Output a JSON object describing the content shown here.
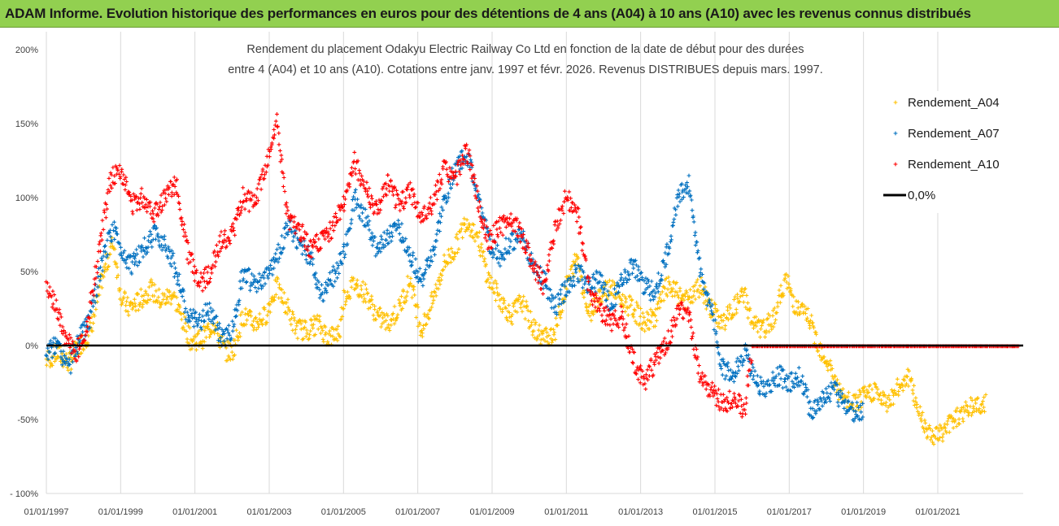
{
  "header": {
    "title": "ADAM Informe. Evolution historique des performances en euros pour des détentions de 4 ans (A04) à 10 ans (A10) avec les revenus connus distribués"
  },
  "chart_data": {
    "type": "scatter",
    "title_line1": "Rendement du placement Odakyu Electric Railway Co Ltd en fonction de la date de début pour des durées",
    "title_line2": "entre 4 (A04) et 10 ans (A10). Cotations entre janv. 1997 et févr.  2026. Revenus DISTRIBUES depuis mars. 1997.",
    "xlabel": "",
    "ylabel": "",
    "xlim": [
      1997.0,
      2023.3
    ],
    "ylim": [
      -100,
      200
    ],
    "y_ticks": [
      200,
      150,
      100,
      50,
      0,
      -50,
      -100
    ],
    "y_tick_labels": [
      "200%",
      "150%",
      "100%",
      "50%",
      "0%",
      "-50%",
      "- 100%"
    ],
    "x_ticks": [
      1997,
      1999,
      2001,
      2003,
      2005,
      2007,
      2009,
      2011,
      2013,
      2015,
      2017,
      2019,
      2021
    ],
    "x_tick_labels": [
      "01/01/1997",
      "01/01/1999",
      "01/01/2001",
      "01/01/2003",
      "01/01/2005",
      "01/01/2007",
      "01/01/2009",
      "01/01/2011",
      "01/01/2013",
      "01/01/2015",
      "01/01/2017",
      "01/01/2019",
      "01/01/2021"
    ],
    "legend_position": "top-right",
    "series": [
      {
        "name": "Rendement_A04",
        "color": "#ffc000",
        "marker": "plus",
        "points": [
          [
            1997.0,
            -10
          ],
          [
            1997.3,
            -5
          ],
          [
            1997.6,
            -12
          ],
          [
            1997.9,
            0
          ],
          [
            1998.2,
            10
          ],
          [
            1998.5,
            45
          ],
          [
            1998.8,
            70
          ],
          [
            1999.0,
            35
          ],
          [
            1999.2,
            25
          ],
          [
            1999.5,
            30
          ],
          [
            1999.8,
            38
          ],
          [
            2000.1,
            30
          ],
          [
            2000.4,
            35
          ],
          [
            2000.7,
            15
          ],
          [
            2000.9,
            3
          ],
          [
            2001.2,
            5
          ],
          [
            2001.5,
            15
          ],
          [
            2001.8,
            -3
          ],
          [
            2002.0,
            -5
          ],
          [
            2002.3,
            20
          ],
          [
            2002.6,
            15
          ],
          [
            2002.9,
            20
          ],
          [
            2003.2,
            40
          ],
          [
            2003.5,
            25
          ],
          [
            2003.7,
            12
          ],
          [
            2004.0,
            10
          ],
          [
            2004.3,
            15
          ],
          [
            2004.6,
            5
          ],
          [
            2004.9,
            10
          ],
          [
            2005.0,
            32
          ],
          [
            2005.3,
            42
          ],
          [
            2005.6,
            35
          ],
          [
            2005.9,
            20
          ],
          [
            2006.2,
            15
          ],
          [
            2006.5,
            25
          ],
          [
            2006.8,
            45
          ],
          [
            2007.1,
            10
          ],
          [
            2007.4,
            30
          ],
          [
            2007.7,
            55
          ],
          [
            2008.0,
            65
          ],
          [
            2008.3,
            85
          ],
          [
            2008.6,
            75
          ],
          [
            2008.9,
            45
          ],
          [
            2009.2,
            32
          ],
          [
            2009.5,
            20
          ],
          [
            2009.8,
            30
          ],
          [
            2010.1,
            12
          ],
          [
            2010.4,
            5
          ],
          [
            2010.7,
            10
          ],
          [
            2011.0,
            40
          ],
          [
            2011.3,
            60
          ],
          [
            2011.6,
            20
          ],
          [
            2011.9,
            35
          ],
          [
            2012.2,
            40
          ],
          [
            2012.5,
            30
          ],
          [
            2012.8,
            25
          ],
          [
            2013.1,
            15
          ],
          [
            2013.4,
            20
          ],
          [
            2013.7,
            40
          ],
          [
            2014.0,
            35
          ],
          [
            2014.3,
            30
          ],
          [
            2014.6,
            40
          ],
          [
            2014.9,
            25
          ],
          [
            2015.2,
            15
          ],
          [
            2015.5,
            25
          ],
          [
            2015.8,
            35
          ],
          [
            2016.0,
            15
          ],
          [
            2016.3,
            10
          ],
          [
            2016.6,
            20
          ],
          [
            2016.9,
            45
          ],
          [
            2017.2,
            25
          ],
          [
            2017.5,
            20
          ],
          [
            2017.8,
            0
          ],
          [
            2018.1,
            -15
          ],
          [
            2018.4,
            -35
          ],
          [
            2018.7,
            -40
          ],
          [
            2019.0,
            -35
          ],
          [
            2019.3,
            -30
          ],
          [
            2019.6,
            -40
          ],
          [
            2019.9,
            -30
          ],
          [
            2020.2,
            -20
          ],
          [
            2020.5,
            -45
          ],
          [
            2020.8,
            -60
          ],
          [
            2021.1,
            -60
          ],
          [
            2021.4,
            -50
          ],
          [
            2021.7,
            -45
          ],
          [
            2022.0,
            -40
          ],
          [
            2022.3,
            -40
          ]
        ]
      },
      {
        "name": "Rendement_A07",
        "color": "#0070c0",
        "marker": "plus",
        "points": [
          [
            1997.0,
            -5
          ],
          [
            1997.3,
            0
          ],
          [
            1997.6,
            -15
          ],
          [
            1997.9,
            5
          ],
          [
            1998.2,
            20
          ],
          [
            1998.5,
            55
          ],
          [
            1998.8,
            80
          ],
          [
            1999.0,
            65
          ],
          [
            1999.3,
            55
          ],
          [
            1999.6,
            65
          ],
          [
            1999.9,
            75
          ],
          [
            2000.2,
            70
          ],
          [
            2000.5,
            50
          ],
          [
            2000.8,
            20
          ],
          [
            2001.1,
            15
          ],
          [
            2001.4,
            25
          ],
          [
            2001.7,
            5
          ],
          [
            2002.0,
            10
          ],
          [
            2002.3,
            50
          ],
          [
            2002.6,
            40
          ],
          [
            2002.9,
            45
          ],
          [
            2003.2,
            60
          ],
          [
            2003.5,
            80
          ],
          [
            2003.8,
            70
          ],
          [
            2004.1,
            60
          ],
          [
            2004.4,
            35
          ],
          [
            2004.7,
            45
          ],
          [
            2005.0,
            60
          ],
          [
            2005.3,
            100
          ],
          [
            2005.6,
            85
          ],
          [
            2005.9,
            65
          ],
          [
            2006.2,
            75
          ],
          [
            2006.5,
            80
          ],
          [
            2006.8,
            60
          ],
          [
            2007.1,
            45
          ],
          [
            2007.4,
            60
          ],
          [
            2007.7,
            95
          ],
          [
            2008.0,
            120
          ],
          [
            2008.3,
            130
          ],
          [
            2008.6,
            105
          ],
          [
            2008.9,
            70
          ],
          [
            2009.2,
            60
          ],
          [
            2009.5,
            70
          ],
          [
            2009.8,
            75
          ],
          [
            2010.1,
            55
          ],
          [
            2010.4,
            45
          ],
          [
            2010.7,
            25
          ],
          [
            2011.0,
            40
          ],
          [
            2011.3,
            50
          ],
          [
            2011.6,
            40
          ],
          [
            2011.9,
            45
          ],
          [
            2012.2,
            25
          ],
          [
            2012.5,
            45
          ],
          [
            2012.8,
            55
          ],
          [
            2013.1,
            40
          ],
          [
            2013.4,
            35
          ],
          [
            2013.7,
            60
          ],
          [
            2014.0,
            100
          ],
          [
            2014.3,
            110
          ],
          [
            2014.6,
            50
          ],
          [
            2014.9,
            25
          ],
          [
            2015.2,
            -15
          ],
          [
            2015.5,
            -20
          ],
          [
            2015.8,
            -5
          ],
          [
            2016.1,
            -25
          ],
          [
            2016.4,
            -30
          ],
          [
            2016.7,
            -20
          ],
          [
            2017.0,
            -25
          ],
          [
            2017.3,
            -20
          ],
          [
            2017.6,
            -45
          ],
          [
            2017.9,
            -35
          ],
          [
            2018.2,
            -30
          ],
          [
            2018.5,
            -40
          ],
          [
            2018.8,
            -45
          ],
          [
            2019.0,
            -45
          ]
        ]
      },
      {
        "name": "Rendement_A10",
        "color": "#ff0000",
        "marker": "plus",
        "points": [
          [
            1997.0,
            40
          ],
          [
            1997.2,
            30
          ],
          [
            1997.5,
            5
          ],
          [
            1997.8,
            -5
          ],
          [
            1998.1,
            15
          ],
          [
            1998.4,
            60
          ],
          [
            1998.7,
            110
          ],
          [
            1999.0,
            120
          ],
          [
            1999.3,
            95
          ],
          [
            1999.6,
            100
          ],
          [
            1999.9,
            90
          ],
          [
            2000.2,
            100
          ],
          [
            2000.5,
            110
          ],
          [
            2000.8,
            65
          ],
          [
            2001.1,
            40
          ],
          [
            2001.4,
            50
          ],
          [
            2001.7,
            70
          ],
          [
            2002.0,
            75
          ],
          [
            2002.3,
            100
          ],
          [
            2002.6,
            95
          ],
          [
            2002.9,
            120
          ],
          [
            2003.2,
            150
          ],
          [
            2003.5,
            85
          ],
          [
            2003.8,
            80
          ],
          [
            2004.1,
            65
          ],
          [
            2004.4,
            70
          ],
          [
            2004.7,
            80
          ],
          [
            2005.0,
            95
          ],
          [
            2005.3,
            125
          ],
          [
            2005.6,
            105
          ],
          [
            2005.9,
            90
          ],
          [
            2006.2,
            110
          ],
          [
            2006.5,
            95
          ],
          [
            2006.8,
            105
          ],
          [
            2007.1,
            85
          ],
          [
            2007.4,
            95
          ],
          [
            2007.7,
            120
          ],
          [
            2008.0,
            110
          ],
          [
            2008.3,
            135
          ],
          [
            2008.6,
            100
          ],
          [
            2008.9,
            70
          ],
          [
            2009.2,
            80
          ],
          [
            2009.5,
            85
          ],
          [
            2009.8,
            75
          ],
          [
            2010.1,
            55
          ],
          [
            2010.4,
            40
          ],
          [
            2010.7,
            80
          ],
          [
            2011.0,
            100
          ],
          [
            2011.3,
            90
          ],
          [
            2011.6,
            40
          ],
          [
            2011.9,
            25
          ],
          [
            2012.2,
            15
          ],
          [
            2012.5,
            20
          ],
          [
            2012.8,
            -10
          ],
          [
            2013.1,
            -25
          ],
          [
            2013.4,
            -10
          ],
          [
            2013.7,
            0
          ],
          [
            2014.0,
            25
          ],
          [
            2014.3,
            20
          ],
          [
            2014.6,
            -20
          ],
          [
            2014.9,
            -30
          ],
          [
            2015.2,
            -40
          ],
          [
            2015.5,
            -35
          ],
          [
            2015.8,
            -45
          ],
          [
            2016.0,
            -0.5
          ],
          [
            2017.0,
            -0.5
          ],
          [
            2018.0,
            -0.5
          ],
          [
            2019.0,
            -0.5
          ],
          [
            2020.0,
            -0.5
          ],
          [
            2021.0,
            -0.5
          ],
          [
            2022.0,
            -0.5
          ],
          [
            2023.2,
            -0.5
          ]
        ]
      }
    ],
    "reference_line": {
      "name": "0,0%",
      "value": 0,
      "color": "#000000"
    }
  }
}
